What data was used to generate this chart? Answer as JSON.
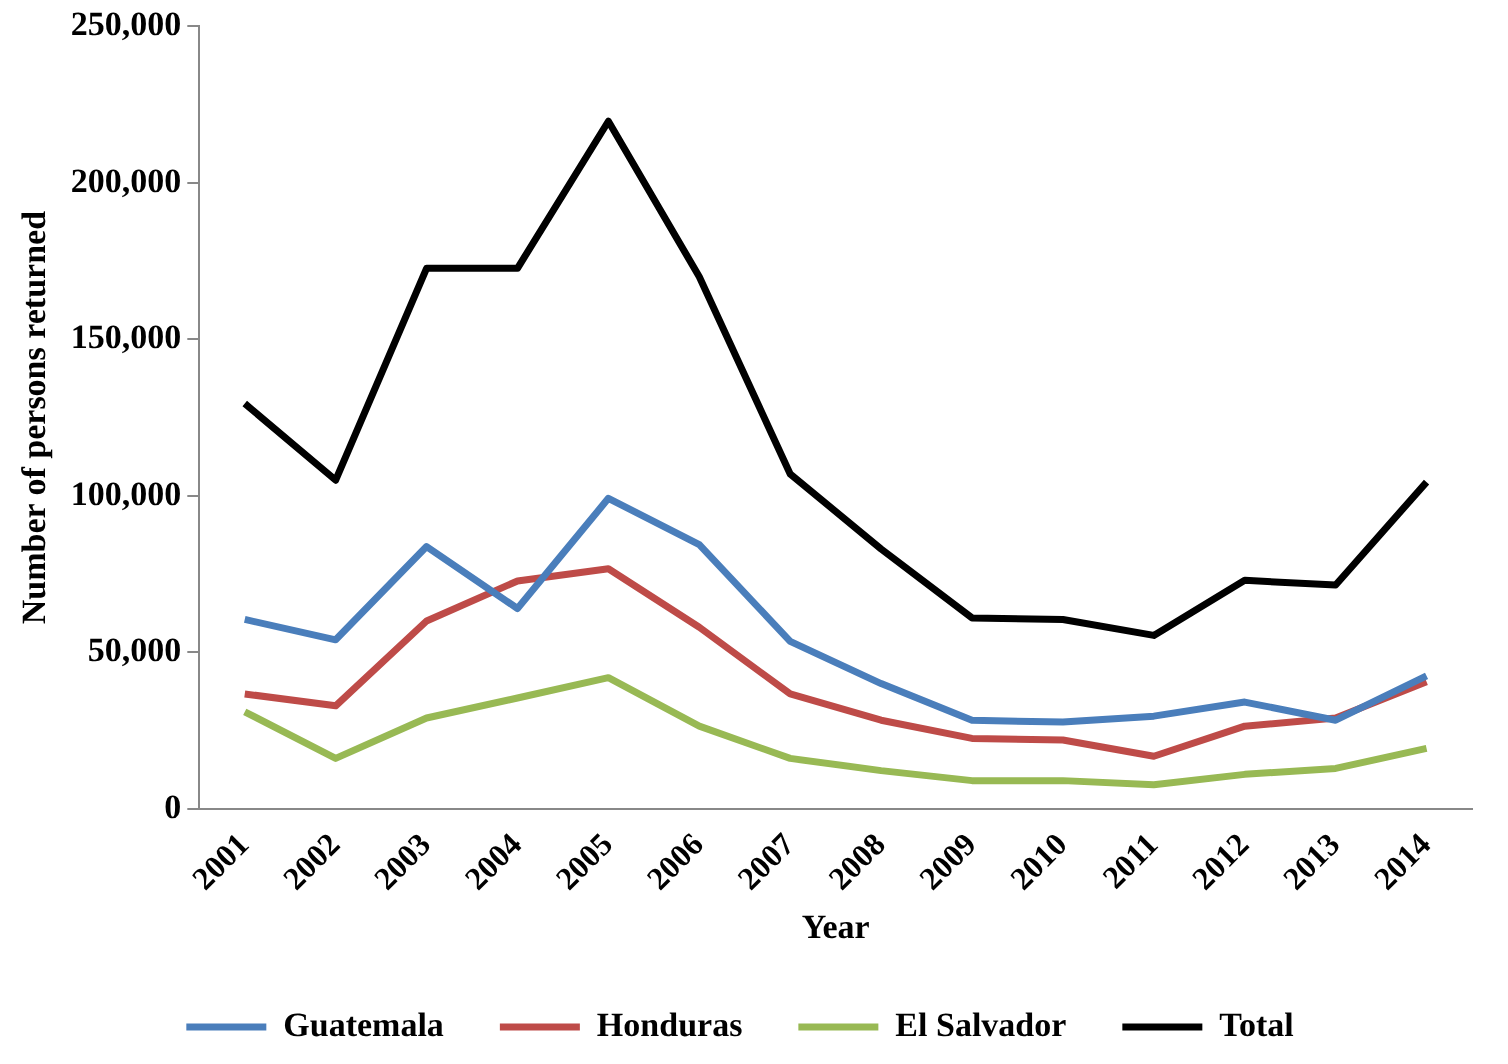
{
  "chart_data": {
    "type": "line",
    "xlabel": "Year",
    "ylabel": "Number of persons returned",
    "categories": [
      "2001",
      "2002",
      "2003",
      "2004",
      "2005",
      "2006",
      "2007",
      "2008",
      "2009",
      "2010",
      "2011",
      "2012",
      "2013",
      "2014"
    ],
    "series": [
      {
        "name": "Guatemala",
        "color": "#4a7ebb",
        "values": [
          60500,
          54000,
          83800,
          64000,
          99200,
          84400,
          53500,
          40000,
          28300,
          27700,
          29600,
          34100,
          28300,
          42500
        ]
      },
      {
        "name": "Honduras",
        "color": "#be4b48",
        "values": [
          36700,
          32900,
          60000,
          72800,
          76700,
          58000,
          36700,
          28300,
          22500,
          22000,
          16800,
          26400,
          29000,
          40600
        ]
      },
      {
        "name": "El Salvador",
        "color": "#98b954",
        "values": [
          31000,
          16100,
          29000,
          35400,
          41900,
          26400,
          16100,
          12200,
          9000,
          9000,
          7700,
          11000,
          12900,
          19300
        ]
      },
      {
        "name": "Total",
        "color": "#000000",
        "values": [
          129500,
          105000,
          172700,
          172700,
          219700,
          170000,
          107000,
          83000,
          61000,
          60500,
          55400,
          73000,
          71500,
          104400
        ]
      }
    ],
    "ylim": [
      0,
      250000
    ],
    "yticks": [
      {
        "value": 0,
        "label": "0"
      },
      {
        "value": 50000,
        "label": "50,000"
      },
      {
        "value": 100000,
        "label": "100,000"
      },
      {
        "value": 150000,
        "label": "150,000"
      },
      {
        "value": 200000,
        "label": "200,000"
      },
      {
        "value": 250000,
        "label": "250,000"
      }
    ],
    "grid": false,
    "legend": "bottom",
    "marker": "none",
    "line_style": "solid"
  }
}
